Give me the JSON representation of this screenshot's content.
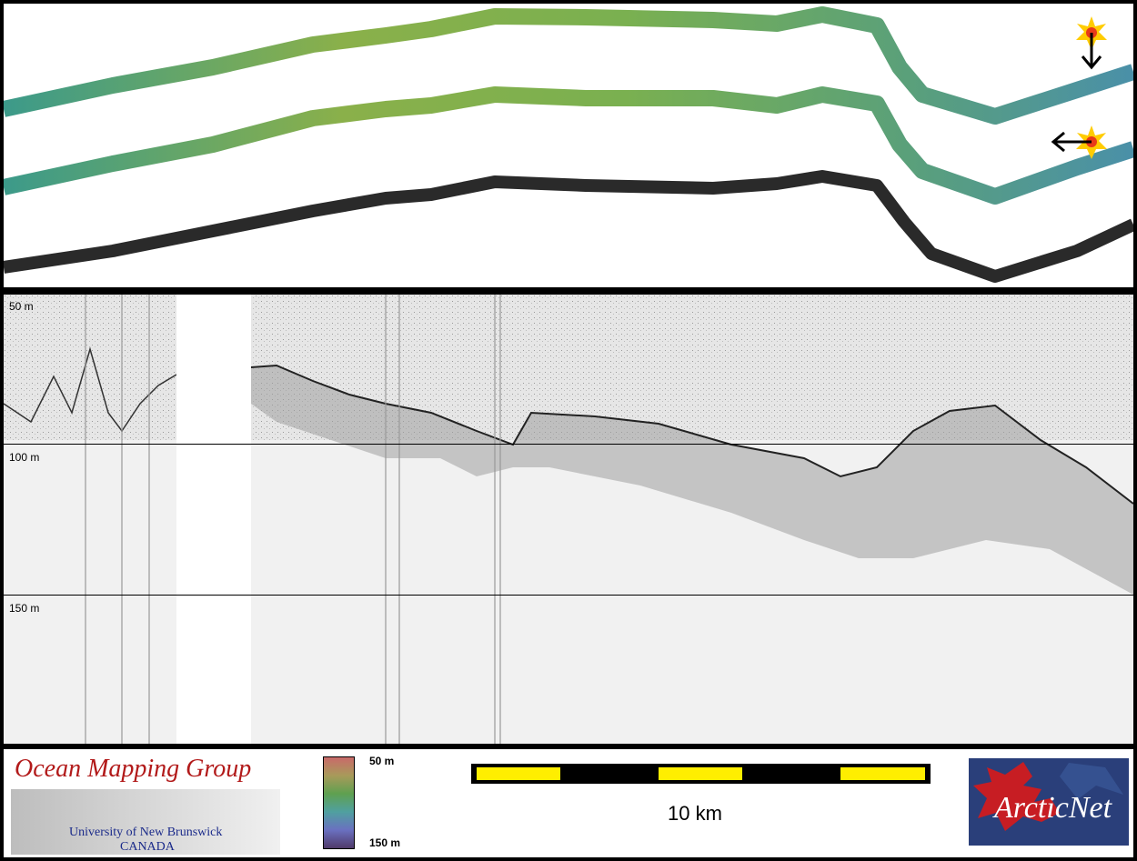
{
  "profile": {
    "depth_labels": [
      "50 m",
      "100 m",
      "150 m"
    ]
  },
  "footer": {
    "logo_title": "Ocean Mapping Group",
    "logo_subtitle_1": "University of New Brunswick",
    "logo_subtitle_2": "CANADA",
    "colorbar_top": "50 m",
    "colorbar_bottom": "150 m",
    "scale_label": "10 km",
    "arcticnet_label": "ArcticNet"
  },
  "colors": {
    "swath_color": "#6aa46a",
    "swath_mono": "#2a2a2a",
    "scale_yellow": "#ffee00",
    "omg_red": "#b21a1a",
    "arctic_blue": "#2a3f7a"
  },
  "icons": [
    "sun-icon",
    "arrow-down-icon",
    "arrow-left-icon",
    "maple-leaf-icon"
  ]
}
